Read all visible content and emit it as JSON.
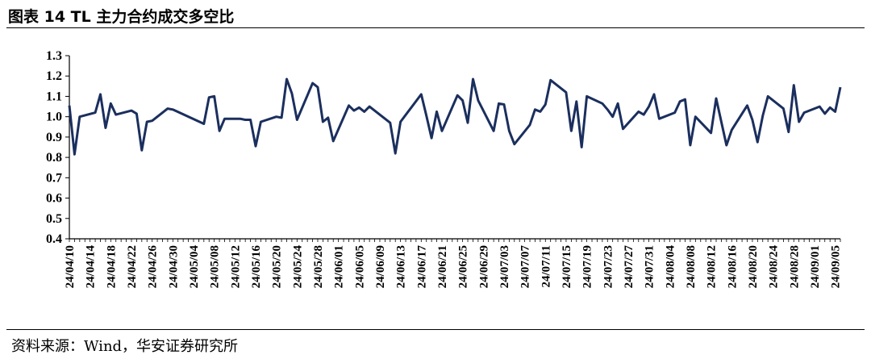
{
  "title": "图表 14 TL 主力合约成交多空比",
  "source": "资料来源：Wind，华安证券研究所",
  "colors": {
    "line": "#1b2f5e",
    "axis": "#000000"
  },
  "chart_data": {
    "type": "line",
    "ylim": [
      0.4,
      1.3
    ],
    "yticks": [
      "0.4",
      "0.5",
      "0.6",
      "0.7",
      "0.8",
      "0.9",
      "1.0",
      "1.1",
      "1.2",
      "1.3"
    ],
    "xtick_labels": [
      "24/04/10",
      "24/04/14",
      "24/04/18",
      "24/04/22",
      "24/04/26",
      "24/04/30",
      "24/05/04",
      "24/05/08",
      "24/05/12",
      "24/05/16",
      "24/05/20",
      "24/05/24",
      "24/05/28",
      "24/06/01",
      "24/06/05",
      "24/06/09",
      "24/06/13",
      "24/06/17",
      "24/06/21",
      "24/06/25",
      "24/06/29",
      "24/07/03",
      "24/07/07",
      "24/07/11",
      "24/07/15",
      "24/07/19",
      "24/07/23",
      "24/07/27",
      "24/07/31",
      "24/08/04",
      "24/08/08",
      "24/08/12",
      "24/08/16",
      "24/08/20",
      "24/08/24",
      "24/08/28",
      "24/09/01",
      "24/09/05"
    ],
    "x_start": "2024-04-10",
    "x_end": "2024-09-06",
    "legend": "none",
    "grid": false,
    "series": [
      {
        "points": [
          [
            "2024-04-10",
            1.055
          ],
          [
            "2024-04-11",
            0.815
          ],
          [
            "2024-04-12",
            1.0
          ],
          [
            "2024-04-15",
            1.02
          ],
          [
            "2024-04-16",
            1.11
          ],
          [
            "2024-04-17",
            0.945
          ],
          [
            "2024-04-18",
            1.065
          ],
          [
            "2024-04-19",
            1.01
          ],
          [
            "2024-04-22",
            1.03
          ],
          [
            "2024-04-23",
            1.015
          ],
          [
            "2024-04-24",
            0.835
          ],
          [
            "2024-04-25",
            0.975
          ],
          [
            "2024-04-26",
            0.98
          ],
          [
            "2024-04-29",
            1.04
          ],
          [
            "2024-04-30",
            1.035
          ],
          [
            "2024-05-06",
            0.965
          ],
          [
            "2024-05-07",
            1.095
          ],
          [
            "2024-05-08",
            1.1
          ],
          [
            "2024-05-09",
            0.93
          ],
          [
            "2024-05-10",
            0.99
          ],
          [
            "2024-05-13",
            0.99
          ],
          [
            "2024-05-14",
            0.985
          ],
          [
            "2024-05-15",
            0.985
          ],
          [
            "2024-05-16",
            0.855
          ],
          [
            "2024-05-17",
            0.975
          ],
          [
            "2024-05-20",
            1.0
          ],
          [
            "2024-05-21",
            0.995
          ],
          [
            "2024-05-22",
            1.185
          ],
          [
            "2024-05-23",
            1.115
          ],
          [
            "2024-05-24",
            0.985
          ],
          [
            "2024-05-27",
            1.165
          ],
          [
            "2024-05-28",
            1.145
          ],
          [
            "2024-05-29",
            0.975
          ],
          [
            "2024-05-30",
            0.995
          ],
          [
            "2024-05-31",
            0.88
          ],
          [
            "2024-06-03",
            1.055
          ],
          [
            "2024-06-04",
            1.03
          ],
          [
            "2024-06-05",
            1.045
          ],
          [
            "2024-06-06",
            1.025
          ],
          [
            "2024-06-07",
            1.05
          ],
          [
            "2024-06-11",
            0.97
          ],
          [
            "2024-06-12",
            0.82
          ],
          [
            "2024-06-13",
            0.975
          ],
          [
            "2024-06-17",
            1.11
          ],
          [
            "2024-06-18",
            1.005
          ],
          [
            "2024-06-19",
            0.895
          ],
          [
            "2024-06-20",
            1.025
          ],
          [
            "2024-06-21",
            0.93
          ],
          [
            "2024-06-24",
            1.105
          ],
          [
            "2024-06-25",
            1.08
          ],
          [
            "2024-06-26",
            0.97
          ],
          [
            "2024-06-27",
            1.185
          ],
          [
            "2024-06-28",
            1.08
          ],
          [
            "2024-07-01",
            0.93
          ],
          [
            "2024-07-02",
            1.065
          ],
          [
            "2024-07-03",
            1.06
          ],
          [
            "2024-07-04",
            0.93
          ],
          [
            "2024-07-05",
            0.865
          ],
          [
            "2024-07-08",
            0.96
          ],
          [
            "2024-07-09",
            1.035
          ],
          [
            "2024-07-10",
            1.025
          ],
          [
            "2024-07-11",
            1.06
          ],
          [
            "2024-07-12",
            1.18
          ],
          [
            "2024-07-15",
            1.12
          ],
          [
            "2024-07-16",
            0.93
          ],
          [
            "2024-07-17",
            1.075
          ],
          [
            "2024-07-18",
            0.85
          ],
          [
            "2024-07-19",
            1.1
          ],
          [
            "2024-07-22",
            1.065
          ],
          [
            "2024-07-23",
            1.035
          ],
          [
            "2024-07-24",
            1.0
          ],
          [
            "2024-07-25",
            1.065
          ],
          [
            "2024-07-26",
            0.94
          ],
          [
            "2024-07-29",
            1.025
          ],
          [
            "2024-07-30",
            1.01
          ],
          [
            "2024-07-31",
            1.05
          ],
          [
            "2024-08-01",
            1.11
          ],
          [
            "2024-08-02",
            0.99
          ],
          [
            "2024-08-05",
            1.02
          ],
          [
            "2024-08-06",
            1.075
          ],
          [
            "2024-08-07",
            1.085
          ],
          [
            "2024-08-08",
            0.86
          ],
          [
            "2024-08-09",
            1.0
          ],
          [
            "2024-08-12",
            0.92
          ],
          [
            "2024-08-13",
            1.09
          ],
          [
            "2024-08-14",
            0.975
          ],
          [
            "2024-08-15",
            0.86
          ],
          [
            "2024-08-16",
            0.935
          ],
          [
            "2024-08-19",
            1.055
          ],
          [
            "2024-08-20",
            0.985
          ],
          [
            "2024-08-21",
            0.875
          ],
          [
            "2024-08-22",
            1.005
          ],
          [
            "2024-08-23",
            1.1
          ],
          [
            "2024-08-26",
            1.04
          ],
          [
            "2024-08-27",
            0.925
          ],
          [
            "2024-08-28",
            1.155
          ],
          [
            "2024-08-29",
            0.975
          ],
          [
            "2024-08-30",
            1.02
          ],
          [
            "2024-09-02",
            1.05
          ],
          [
            "2024-09-03",
            1.015
          ],
          [
            "2024-09-04",
            1.045
          ],
          [
            "2024-09-05",
            1.025
          ],
          [
            "2024-09-06",
            1.145
          ]
        ]
      }
    ]
  }
}
